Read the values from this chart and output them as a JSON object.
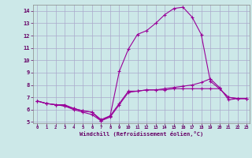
{
  "background_color": "#cce8e8",
  "grid_color": "#aaaacc",
  "line_color": "#990099",
  "xlabel": "Windchill (Refroidissement éolien,°C)",
  "xlabel_color": "#660066",
  "xlim": [
    -0.5,
    23.3
  ],
  "ylim": [
    4.9,
    14.5
  ],
  "yticks": [
    5,
    6,
    7,
    8,
    9,
    10,
    11,
    12,
    13,
    14
  ],
  "xticks": [
    0,
    1,
    2,
    3,
    4,
    5,
    6,
    7,
    8,
    9,
    10,
    11,
    12,
    13,
    14,
    15,
    16,
    17,
    18,
    19,
    20,
    21,
    22,
    23
  ],
  "series1_x": [
    0,
    1,
    2,
    3,
    4,
    5,
    6,
    7,
    8,
    9,
    10,
    11,
    12,
    13,
    14,
    15,
    16,
    17,
    18,
    19,
    20,
    21,
    22,
    23
  ],
  "series1_y": [
    6.7,
    6.5,
    6.4,
    6.4,
    6.1,
    5.9,
    5.8,
    5.2,
    5.5,
    6.5,
    7.5,
    7.5,
    7.6,
    7.6,
    7.6,
    7.7,
    7.7,
    7.7,
    7.7,
    7.7,
    7.7,
    7.0,
    6.9,
    6.9
  ],
  "series2_x": [
    0,
    1,
    2,
    3,
    4,
    5,
    6,
    7,
    8,
    9,
    10,
    11,
    12,
    13,
    14,
    15,
    16,
    17,
    18,
    19,
    20,
    21,
    22,
    23
  ],
  "series2_y": [
    6.7,
    6.5,
    6.4,
    6.3,
    6.0,
    5.8,
    5.6,
    5.1,
    5.4,
    6.4,
    7.4,
    7.5,
    7.6,
    7.6,
    7.7,
    7.8,
    7.9,
    8.0,
    8.2,
    8.5,
    7.8,
    6.8,
    6.9,
    6.9
  ],
  "series3_x": [
    0,
    1,
    2,
    3,
    4,
    5,
    6,
    7,
    8,
    9,
    10,
    11,
    12,
    13,
    14,
    15,
    16,
    17,
    18,
    19,
    20,
    21,
    22,
    23
  ],
  "series3_y": [
    6.7,
    6.5,
    6.4,
    6.3,
    6.1,
    5.9,
    5.8,
    5.1,
    5.5,
    9.1,
    10.9,
    12.1,
    12.4,
    13.0,
    13.7,
    14.2,
    14.3,
    13.5,
    12.1,
    8.3,
    7.7,
    7.0,
    6.9,
    6.9
  ]
}
